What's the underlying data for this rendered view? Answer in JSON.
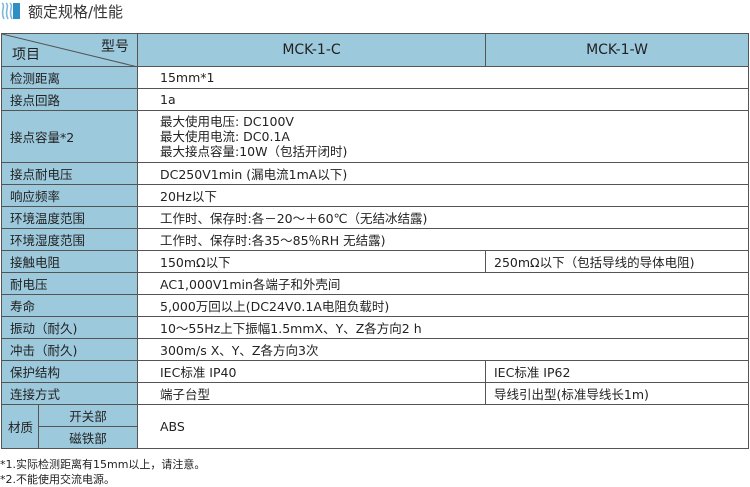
{
  "title": "额定规格/性能",
  "header": {
    "model_label": "型号",
    "item_label": "项目",
    "models": [
      "MCK-1-C",
      "MCK-1-W"
    ]
  },
  "rows": {
    "r1": {
      "label": "检测距离",
      "value": "15mm*1"
    },
    "r2": {
      "label": "接点回路",
      "value": "1a"
    },
    "r3": {
      "label": "接点容量*2",
      "lines": [
        "最大使用电压:  DC100V",
        "最大使用电流:  DC0.1A",
        "最大接点容量:10W（包括开闭时)"
      ]
    },
    "r4": {
      "label": "接点耐电压",
      "value": "DC250V1min (漏电流1mA以下)"
    },
    "r5": {
      "label": "响应频率",
      "value": "20Hz以下"
    },
    "r6": {
      "label": "环境温度范围",
      "value": "工作时、保存时:各－20～＋60℃（无结冰结露)"
    },
    "r7": {
      "label": "环境湿度范围",
      "value": "工作时、保存时:各35～85％RH 无结露)"
    },
    "r8": {
      "label": "接触电阻",
      "value_c": "150mΩ以下",
      "value_w": "250mΩ以下（包括导线的导体电阻)"
    },
    "r9": {
      "label": "耐电压",
      "value": "AC1,000V1min各端子和外壳间"
    },
    "r10": {
      "label": "寿命",
      "value": "5,000万回以上(DC24V0.1A电阻负载时)"
    },
    "r11": {
      "label": "振动（耐久)",
      "value": "10～55Hz上下振幅1.5mmX、Y、Z各方向2 h"
    },
    "r12": {
      "label": "冲击（耐久)",
      "value": "300m/s X、Y、Z各方向3次"
    },
    "r13": {
      "label": "保护结构",
      "value_c": "IEC标准 IP40",
      "value_w": "IEC标准 IP62"
    },
    "r14": {
      "label": "连接方式",
      "value_c": "端子台型",
      "value_w": "导线引出型(标准导线长1m)"
    },
    "r15": {
      "label": "材质",
      "sub": [
        "开关部",
        "磁铁部"
      ],
      "value": "ABS"
    }
  },
  "notes": [
    "*1.实际检测距离有15mm以上，请注意。",
    "*2.不能使用交流电源。"
  ],
  "colors": {
    "header_bg": "#9dc9dd",
    "accent": "#2e8fc6"
  }
}
